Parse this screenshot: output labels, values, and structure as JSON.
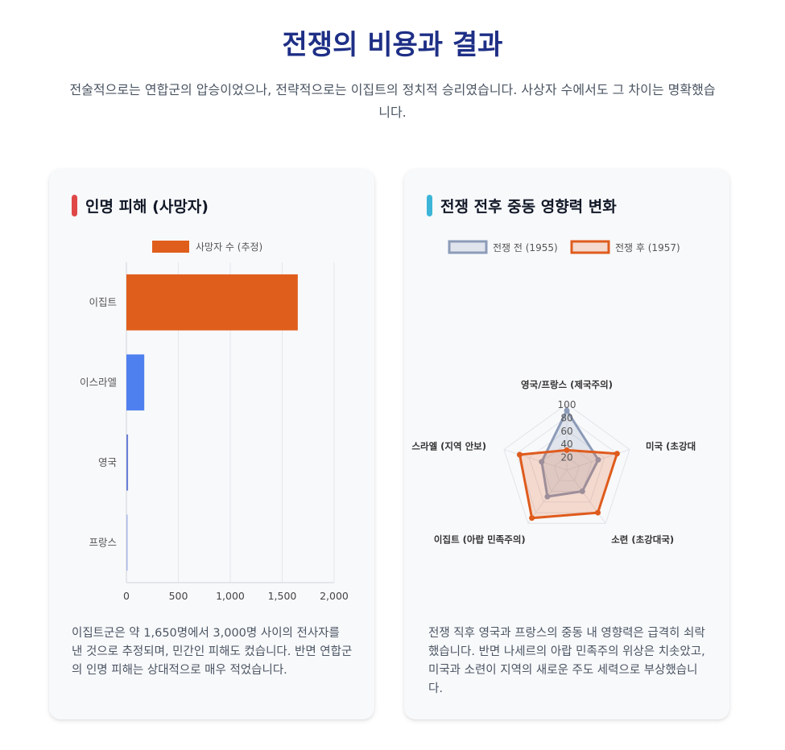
{
  "header": {
    "title": "전쟁의 비용과 결과",
    "subtitle": "전술적으로는 연합군의 압승이었으나, 전략적으로는 이집트의 정치적 승리였습니다. 사상자 수에서도 그 차이는 명확했습니다."
  },
  "cards": [
    {
      "title": "인명 피해 (사망자)",
      "accent_color": "#e04848",
      "description": "이집트군은 약 1,650명에서 3,000명 사이의 전사자를 낸 것으로 추정되며, 민간인 피해도 컸습니다. 반면 연합군의 인명 피해는 상대적으로 매우 적었습니다."
    },
    {
      "title": "전쟁 전후 중동 영향력 변화",
      "accent_color": "#3db5d8",
      "description": "전쟁 직후 영국과 프랑스의 중동 내 영향력은 급격히 쇠락했습니다. 반면 나세르의 아랍 민족주의 위상은 치솟았고, 미국과 소련이 지역의 새로운 주도 세력으로 부상했습니다."
    }
  ],
  "chart_data": [
    {
      "type": "bar",
      "orientation": "horizontal",
      "categories": [
        "이집트",
        "이스라엘",
        "영국",
        "프랑스"
      ],
      "series": [
        {
          "name": "사망자 수 (추정)",
          "values": [
            1650,
            172,
            16,
            10
          ],
          "colors": [
            "#e05e1c",
            "#4f80ef",
            "#6b7fd6",
            "#a9b8e8"
          ]
        }
      ],
      "x_ticks": [
        "0",
        "500",
        "1,000",
        "1,500",
        "2,000"
      ],
      "xlim": [
        0,
        2000
      ],
      "legend_color": "#e05e1c",
      "grid": true,
      "legend_position": "top"
    },
    {
      "type": "radar",
      "axes": [
        "영국/프랑스 (제국주의)",
        "미국 (초강대국)",
        "소련 (초강대국)",
        "이집트 (아랍 민족주의)",
        "이스라엘 (지역 안보)"
      ],
      "axis_labels_shown": [
        "영국/프랑스 (제국주의)",
        "미국 (초강대",
        "소련 (초강대국)",
        "이집트 (아랍 민족주의)",
        "스라엘 (지역 안보)"
      ],
      "series": [
        {
          "name": "전쟁 전 (1955)",
          "values": [
            90,
            50,
            40,
            50,
            40
          ],
          "color": "#8c9bb8",
          "fill": "rgba(140,155,184,0.22)"
        },
        {
          "name": "전쟁 후 (1957)",
          "values": [
            30,
            80,
            80,
            90,
            75
          ],
          "color": "#df5b1d",
          "fill": "rgba(223,91,29,0.20)"
        }
      ],
      "r_ticks": [
        "20",
        "40",
        "60",
        "80",
        "100"
      ],
      "rlim": [
        0,
        100
      ],
      "legend_position": "top"
    }
  ]
}
